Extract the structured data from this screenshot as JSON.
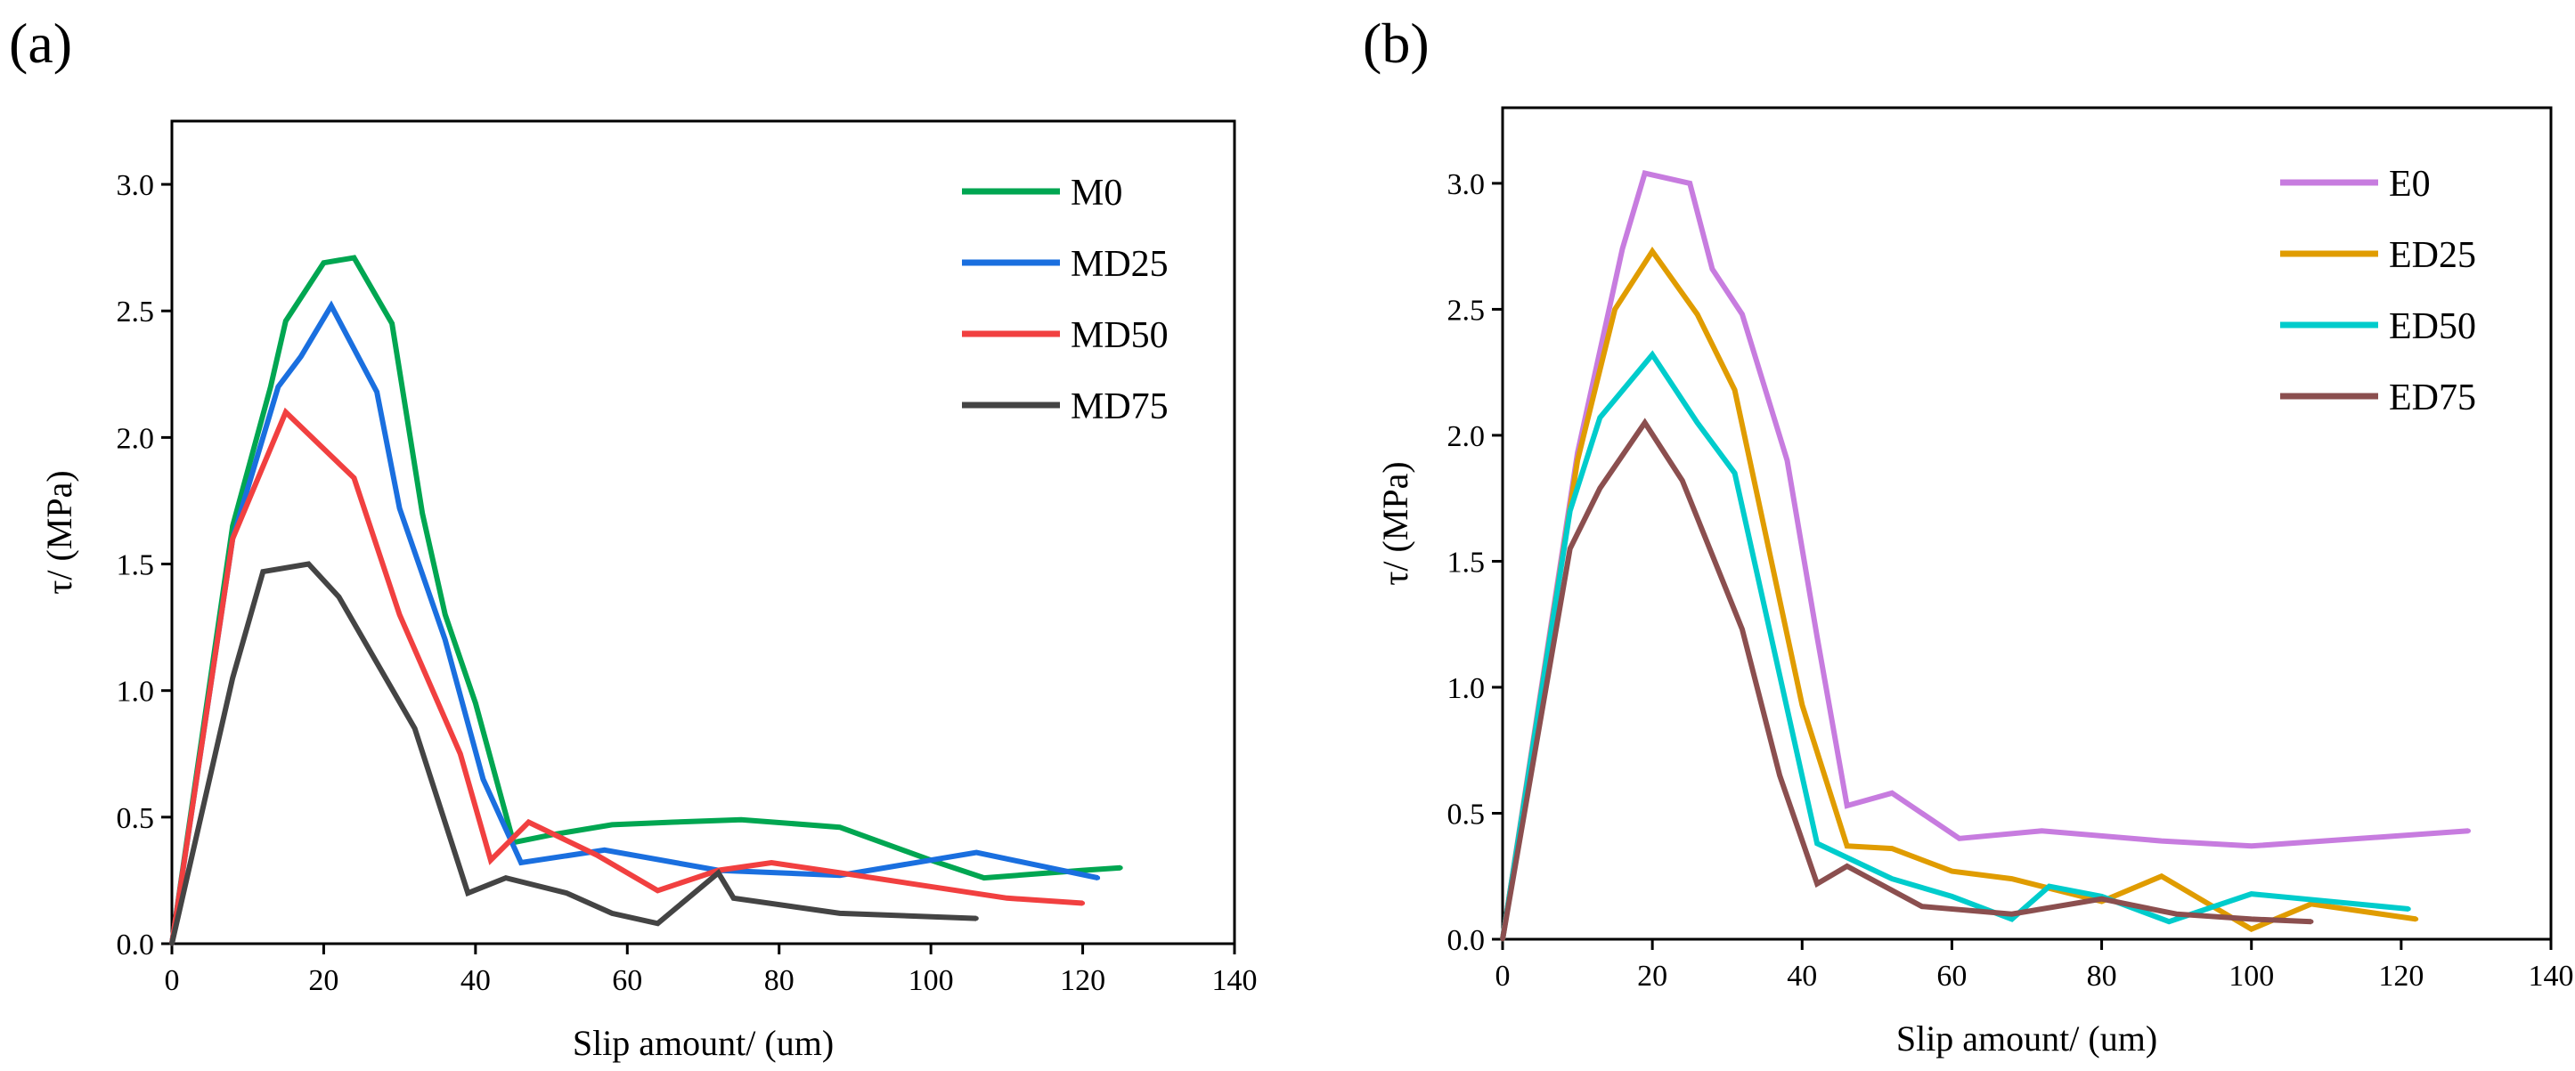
{
  "chart_data": [
    {
      "panel_label": "(a)",
      "panel_letter": "a",
      "type": "line",
      "xlabel": "Slip amount/ (um)",
      "ylabel": "τ/ (MPa)",
      "xlim": [
        0,
        140
      ],
      "ylim": [
        0,
        3.25
      ],
      "xticks": [
        0,
        20,
        40,
        60,
        80,
        100,
        120,
        140
      ],
      "yticks": [
        "0.0",
        "0.5",
        "1.0",
        "1.5",
        "2.0",
        "2.5",
        "3.0"
      ],
      "grid": false,
      "legend_position": "top-right",
      "series": [
        {
          "name": "M0",
          "color": "#00a651",
          "x": [
            0,
            8,
            13,
            15,
            20,
            24,
            29,
            33,
            36,
            40,
            45,
            50,
            58,
            66,
            75,
            88,
            100,
            107,
            120,
            125
          ],
          "y": [
            0,
            1.65,
            2.2,
            2.46,
            2.69,
            2.71,
            2.45,
            1.7,
            1.3,
            0.95,
            0.4,
            0.43,
            0.47,
            0.48,
            0.49,
            0.46,
            0.33,
            0.26,
            0.29,
            0.3
          ]
        },
        {
          "name": "MD25",
          "color": "#1a6fdf",
          "x": [
            0,
            8,
            14,
            17,
            21,
            27,
            30,
            36,
            41,
            46,
            57,
            72,
            88,
            106,
            122
          ],
          "y": [
            0,
            1.6,
            2.2,
            2.32,
            2.52,
            2.18,
            1.72,
            1.2,
            0.65,
            0.32,
            0.37,
            0.29,
            0.27,
            0.36,
            0.26
          ]
        },
        {
          "name": "MD50",
          "color": "#f14040",
          "x": [
            0,
            8,
            15,
            24,
            30,
            38,
            42,
            47,
            56,
            64,
            72,
            79,
            88,
            110,
            120
          ],
          "y": [
            0,
            1.6,
            2.1,
            1.84,
            1.3,
            0.75,
            0.33,
            0.48,
            0.35,
            0.21,
            0.29,
            0.32,
            0.28,
            0.18,
            0.16
          ]
        },
        {
          "name": "MD75",
          "color": "#444444",
          "x": [
            0,
            8,
            12,
            18,
            22,
            32,
            39,
            44,
            52,
            58,
            64,
            72,
            74,
            88,
            106
          ],
          "y": [
            0,
            1.05,
            1.47,
            1.5,
            1.37,
            0.85,
            0.2,
            0.26,
            0.2,
            0.12,
            0.08,
            0.28,
            0.18,
            0.12,
            0.1
          ]
        }
      ]
    },
    {
      "panel_label": "(b)",
      "panel_letter": "b",
      "type": "line",
      "xlabel": "Slip amount/ (um)",
      "ylabel": "τ/ (MPa)",
      "xlim": [
        0,
        140
      ],
      "ylim": [
        0,
        3.3
      ],
      "xticks": [
        0,
        20,
        40,
        60,
        80,
        100,
        120,
        140
      ],
      "yticks": [
        "0.0",
        "0.5",
        "1.0",
        "1.5",
        "2.0",
        "2.5",
        "3.0"
      ],
      "grid": false,
      "legend_position": "top-right",
      "series": [
        {
          "name": "E0",
          "color": "#c77cdf",
          "x": [
            0,
            10,
            16,
            19,
            25,
            28,
            32,
            38,
            42,
            46,
            52,
            61,
            72,
            88,
            100,
            129
          ],
          "y": [
            0,
            1.93,
            2.74,
            3.04,
            3.0,
            2.66,
            2.48,
            1.9,
            1.2,
            0.53,
            0.58,
            0.4,
            0.43,
            0.39,
            0.37,
            0.43
          ]
        },
        {
          "name": "ED25",
          "color": "#e09c00",
          "x": [
            0,
            10,
            15,
            20,
            26,
            31,
            40,
            46,
            52,
            60,
            68,
            80,
            88,
            100,
            108,
            122
          ],
          "y": [
            0,
            1.9,
            2.5,
            2.73,
            2.48,
            2.18,
            0.93,
            0.37,
            0.36,
            0.27,
            0.24,
            0.15,
            0.25,
            0.04,
            0.14,
            0.08
          ]
        },
        {
          "name": "ED50",
          "color": "#00cccc",
          "x": [
            0,
            9,
            13,
            20,
            26,
            31,
            42,
            52,
            60,
            68,
            73,
            80,
            89,
            100,
            121
          ],
          "y": [
            0,
            1.7,
            2.07,
            2.32,
            2.05,
            1.85,
            0.38,
            0.24,
            0.17,
            0.08,
            0.21,
            0.17,
            0.07,
            0.18,
            0.12
          ]
        },
        {
          "name": "ED75",
          "color": "#8b4f4f",
          "x": [
            0,
            9,
            13,
            19,
            24,
            32,
            37,
            42,
            46,
            56,
            68,
            80,
            90,
            100,
            108
          ],
          "y": [
            0,
            1.55,
            1.79,
            2.05,
            1.82,
            1.23,
            0.65,
            0.22,
            0.29,
            0.13,
            0.1,
            0.16,
            0.1,
            0.08,
            0.07
          ]
        }
      ]
    }
  ]
}
